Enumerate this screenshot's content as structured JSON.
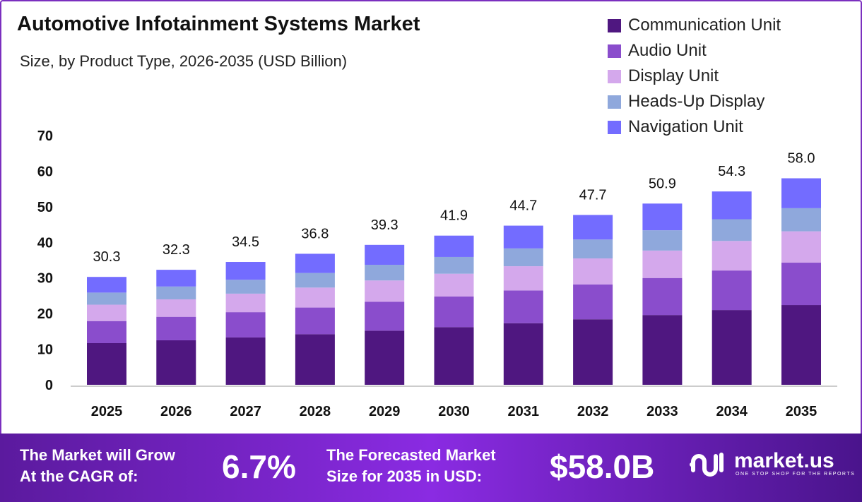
{
  "chart_data": {
    "type": "bar",
    "stacked": true,
    "title": "Automotive Infotainment Systems Market",
    "subtitle": "Size, by Product Type, 2026-2035 (USD Billion)",
    "categories": [
      "2025",
      "2026",
      "2027",
      "2028",
      "2029",
      "2030",
      "2031",
      "2032",
      "2033",
      "2034",
      "2035"
    ],
    "totals": [
      "30.3",
      "32.3",
      "34.5",
      "36.8",
      "39.3",
      "41.9",
      "44.7",
      "47.7",
      "50.9",
      "54.3",
      "58.0"
    ],
    "series": [
      {
        "name": "Communication Unit",
        "color": "#4f1780",
        "values": [
          11.7,
          12.5,
          13.3,
          14.2,
          15.2,
          16.2,
          17.3,
          18.4,
          19.6,
          21.0,
          22.4
        ]
      },
      {
        "name": "Audio Unit",
        "color": "#8a4dcc",
        "values": [
          6.2,
          6.6,
          7.1,
          7.5,
          8.1,
          8.6,
          9.2,
          9.8,
          10.4,
          11.1,
          11.9
        ]
      },
      {
        "name": "Display Unit",
        "color": "#d4a8ec",
        "values": [
          4.6,
          4.9,
          5.2,
          5.6,
          6.0,
          6.4,
          6.8,
          7.3,
          7.7,
          8.3,
          8.8
        ]
      },
      {
        "name": "Heads-Up Display",
        "color": "#8fa8dc",
        "values": [
          3.4,
          3.6,
          3.9,
          4.1,
          4.4,
          4.7,
          5.0,
          5.3,
          5.7,
          6.1,
          6.5
        ]
      },
      {
        "name": "Navigation Unit",
        "color": "#736cff",
        "values": [
          4.4,
          4.7,
          5.0,
          5.4,
          5.6,
          6.0,
          6.4,
          6.9,
          7.5,
          7.8,
          8.4
        ]
      }
    ],
    "yticks": [
      "0",
      "10",
      "20",
      "30",
      "40",
      "50",
      "60",
      "70"
    ],
    "ylim": [
      0,
      70
    ],
    "grid": false,
    "legend": "top-right"
  },
  "footer": {
    "cagr_label": [
      "The Market will Grow",
      "At the CAGR of:"
    ],
    "cagr_value": "6.7%",
    "forecast_label": [
      "The Forecasted Market",
      "Size for 2035 in USD:"
    ],
    "forecast_value": "$58.0B",
    "brand": "market.us",
    "tagline": "ONE STOP SHOP FOR THE REPORTS"
  }
}
